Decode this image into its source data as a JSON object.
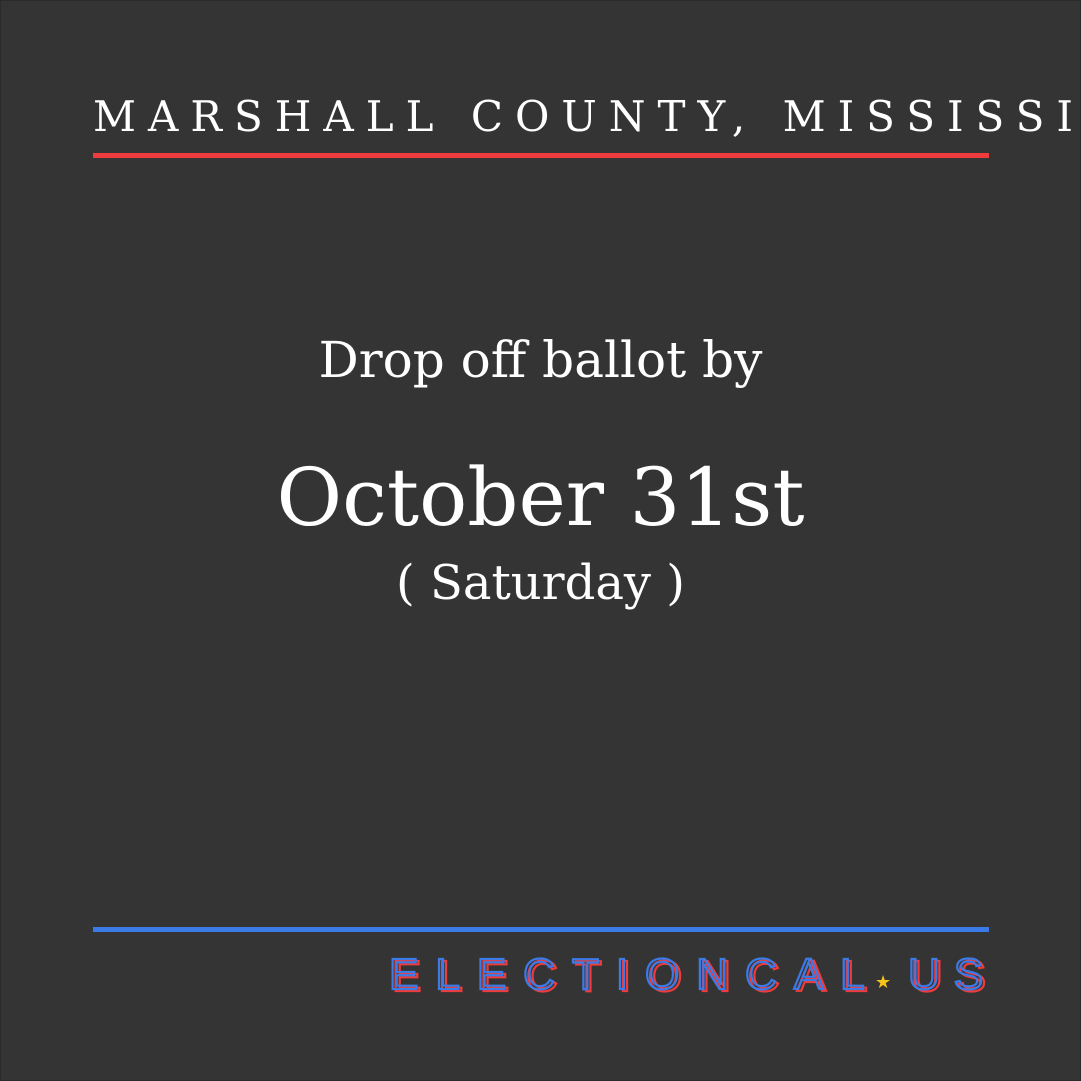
{
  "header": {
    "county": "MARSHALL COUNTY, MISSISSIPPI"
  },
  "main": {
    "lead": "Drop off ballot by",
    "date": "October 31st",
    "weekday": "( Saturday )"
  },
  "brand": {
    "name": "ELECTIONCAL",
    "dot": "★",
    "tld": "US",
    "colors": {
      "red": "#ef3b3b",
      "blue": "#3a7be8",
      "star": "#f5c518"
    }
  },
  "colors": {
    "background": "#343434",
    "text": "#ffffff",
    "accent_red": "#ef3b3b",
    "accent_blue": "#3a7be8"
  }
}
